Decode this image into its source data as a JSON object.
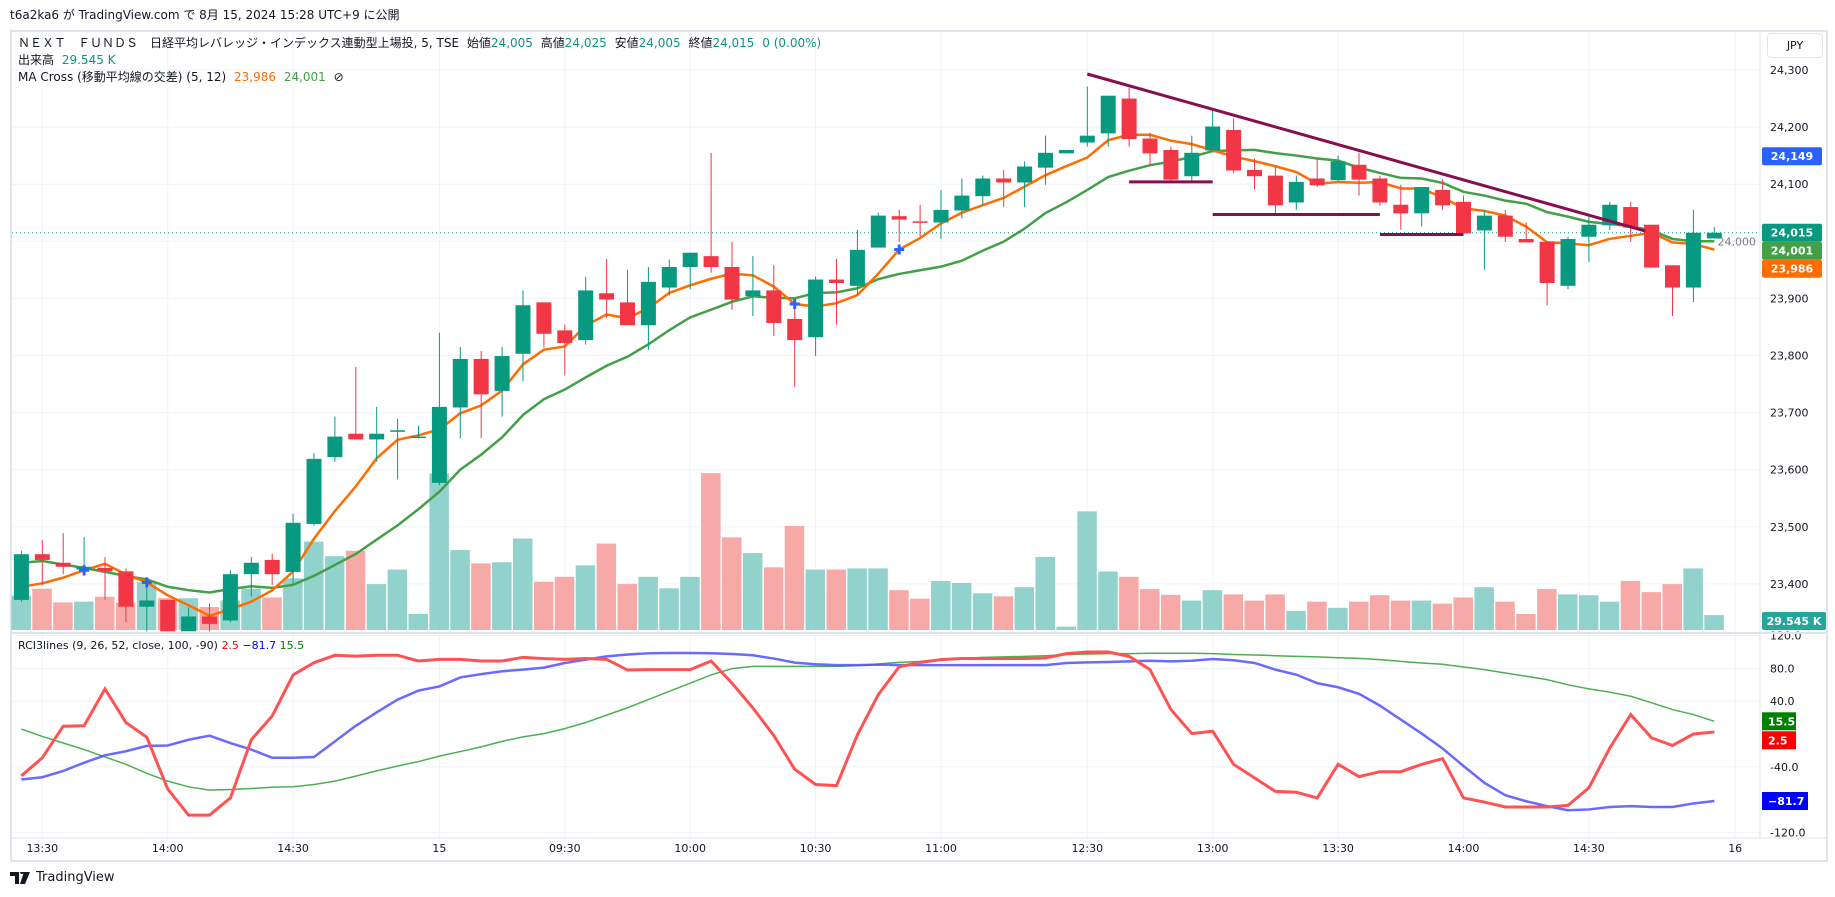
{
  "published": "t6a2ka6 が TradingView.com で 8月 15, 2024 15:28 UTC+9 に公開",
  "legend": {
    "symbol": "ＮＥＸＴ　ＦＵＮＤＳ　日経平均レバレッジ・インデックス連動型上場投, 5, TSE",
    "open_label": "始値",
    "open": "24,005",
    "high_label": "高値",
    "high": "24,025",
    "low_label": "安値",
    "low": "24,005",
    "close_label": "終値",
    "close": "24,015",
    "change": "0 (0.00%)",
    "volume_label": "出来高",
    "volume": "29.545 K",
    "ma_name": "MA Cross (移動平均線の交差) (5, 12)",
    "ma_fast": "23,986",
    "ma_slow": "24,001",
    "ma_hide_icon": "⊘",
    "rci_name": "RCI3lines (9, 26, 52, close, 100, -90)",
    "rci_short": "2.5",
    "rci_mid": "−81.7",
    "rci_long": "15.5"
  },
  "currency_button": "JPY",
  "footer_brand": "TradingView",
  "colors": {
    "up": "#089981",
    "down": "#f23645",
    "ma_fast": "#ff6d00",
    "ma_slow": "#43a047",
    "rci_short": "#ff5252",
    "rci_mid": "#5050ff",
    "rci_long": "#4caf50",
    "trendline": "#880e4f",
    "cross": "#2962ff"
  },
  "price_axis": [
    "24,300",
    "24,200",
    "24,100",
    "24,000",
    "23,900",
    "23,800",
    "23,700",
    "23,600",
    "23,500",
    "23,400"
  ],
  "price_axis_values": [
    24300,
    24200,
    24100,
    24000,
    23900,
    23800,
    23700,
    23600,
    23500,
    23400
  ],
  "price_labels": [
    {
      "text": "24,149",
      "value": 24149,
      "color": "#2962ff"
    },
    {
      "text": "24,015",
      "value": 24015,
      "color": "#089981"
    },
    {
      "text": "24,001",
      "value": 24001,
      "color": "#43a047"
    },
    {
      "text": "23,986",
      "value": 23986,
      "color": "#ff6d00"
    }
  ],
  "volume_label_box": {
    "text": "29.545 K",
    "color": "#26a69a"
  },
  "rci_axis": [
    "120.0",
    "80.0",
    "40.0",
    "-40.0",
    "-120.0"
  ],
  "rci_axis_values": [
    120,
    80,
    40,
    -40,
    -120
  ],
  "rci_levels": [
    100,
    -90
  ],
  "rci_labels": [
    {
      "text": "15.5",
      "value": 15.5,
      "color": "#008000"
    },
    {
      "text": "2.5",
      "value": 2.5,
      "color": "#ff0000"
    },
    {
      "text": "−81.7",
      "value": -81.7,
      "color": "#0000ff"
    }
  ],
  "time_axis": [
    {
      "label": "13:30",
      "bar": 1
    },
    {
      "label": "14:00",
      "bar": 7
    },
    {
      "label": "14:30",
      "bar": 13
    },
    {
      "label": "15",
      "bar": 20
    },
    {
      "label": "09:30",
      "bar": 26
    },
    {
      "label": "10:00",
      "bar": 32
    },
    {
      "label": "10:30",
      "bar": 38
    },
    {
      "label": "11:00",
      "bar": 44
    },
    {
      "label": "12:30",
      "bar": 51
    },
    {
      "label": "13:00",
      "bar": 57
    },
    {
      "label": "13:30",
      "bar": 63
    },
    {
      "label": "14:00",
      "bar": 69
    },
    {
      "label": "14:30",
      "bar": 75
    },
    {
      "label": "16",
      "bar": 82
    }
  ],
  "chart_data": {
    "type": "candlestick",
    "ohlc": [
      [
        23372,
        23458,
        23369,
        23452
      ],
      [
        23452,
        23477,
        23398,
        23442
      ],
      [
        23437,
        23489,
        23417,
        23430
      ],
      [
        23425,
        23482,
        23414,
        23430
      ],
      [
        23428,
        23447,
        23372,
        23422
      ],
      [
        23422,
        23427,
        23333,
        23360
      ],
      [
        23360,
        23411,
        23317,
        23371
      ],
      [
        23372,
        23372,
        23317,
        23317
      ],
      [
        23317,
        23359,
        23317,
        23343
      ],
      [
        23343,
        23366,
        23317,
        23330
      ],
      [
        23336,
        23424,
        23333,
        23417
      ],
      [
        23417,
        23447,
        23378,
        23437
      ],
      [
        23442,
        23453,
        23398,
        23417
      ],
      [
        23421,
        23523,
        23401,
        23507
      ],
      [
        23505,
        23629,
        23502,
        23619
      ],
      [
        23622,
        23693,
        23614,
        23658
      ],
      [
        23663,
        23780,
        23653,
        23653
      ],
      [
        23653,
        23710,
        23614,
        23663
      ],
      [
        23668,
        23689,
        23583,
        23669
      ],
      [
        23657,
        23677,
        23657,
        23658
      ],
      [
        23577,
        23840,
        23573,
        23710
      ],
      [
        23709,
        23815,
        23655,
        23794
      ],
      [
        23794,
        23808,
        23655,
        23732
      ],
      [
        23738,
        23815,
        23693,
        23799
      ],
      [
        23803,
        23914,
        23755,
        23888
      ],
      [
        23893,
        23893,
        23814,
        23838
      ],
      [
        23844,
        23854,
        23765,
        23822
      ],
      [
        23827,
        23938,
        23819,
        23914
      ],
      [
        23909,
        23969,
        23866,
        23898
      ],
      [
        23893,
        23950,
        23853,
        23853
      ],
      [
        23853,
        23955,
        23810,
        23929
      ],
      [
        23919,
        23968,
        23905,
        23955
      ],
      [
        23955,
        23980,
        23916,
        23980
      ],
      [
        23974,
        24155,
        23945,
        23955
      ],
      [
        23955,
        23999,
        23880,
        23898
      ],
      [
        23904,
        23974,
        23869,
        23914
      ],
      [
        23914,
        23958,
        23834,
        23857
      ],
      [
        23864,
        23892,
        23745,
        23827
      ],
      [
        23832,
        23938,
        23799,
        23933
      ],
      [
        23933,
        23969,
        23854,
        23927
      ],
      [
        23922,
        24020,
        23906,
        23985
      ],
      [
        23989,
        24050,
        23989,
        24045
      ],
      [
        24044,
        24055,
        23999,
        24038
      ],
      [
        24035,
        24064,
        24008,
        24033
      ],
      [
        24033,
        24090,
        24004,
        24055
      ],
      [
        24054,
        24110,
        24040,
        24080
      ],
      [
        24079,
        24115,
        24063,
        24110
      ],
      [
        24110,
        24125,
        24060,
        24103
      ],
      [
        24103,
        24140,
        24060,
        24131
      ],
      [
        24129,
        24185,
        24099,
        24155
      ],
      [
        24154,
        24160,
        24154,
        24160
      ],
      [
        24173,
        24271,
        24166,
        24185
      ],
      [
        24189,
        24255,
        24166,
        24255
      ],
      [
        24250,
        24269,
        24166,
        24179
      ],
      [
        24180,
        24190,
        24132,
        24154
      ],
      [
        24160,
        24166,
        24105,
        24108
      ],
      [
        24114,
        24185,
        24106,
        24155
      ],
      [
        24159,
        24231,
        24159,
        24201
      ],
      [
        24195,
        24215,
        24120,
        24124
      ],
      [
        24125,
        24145,
        24091,
        24114
      ],
      [
        24115,
        24131,
        24045,
        24063
      ],
      [
        24068,
        24115,
        24055,
        24104
      ],
      [
        24110,
        24146,
        24095,
        24098
      ],
      [
        24107,
        24150,
        24105,
        24140
      ],
      [
        24134,
        24155,
        24080,
        24108
      ],
      [
        24110,
        24115,
        24062,
        24068
      ],
      [
        24064,
        24099,
        24020,
        24049
      ],
      [
        24049,
        24095,
        24026,
        24095
      ],
      [
        24090,
        24109,
        24055,
        24063
      ],
      [
        24069,
        24080,
        24014,
        24014
      ],
      [
        24019,
        24055,
        23950,
        24045
      ],
      [
        24045,
        24055,
        23999,
        24008
      ],
      [
        24004,
        24033,
        23998,
        23998
      ],
      [
        23999,
        23999,
        23888,
        23927
      ],
      [
        23922,
        24008,
        23916,
        24004
      ],
      [
        24008,
        24049,
        23964,
        24029
      ],
      [
        24028,
        24069,
        24020,
        24064
      ],
      [
        24060,
        24069,
        23999,
        24024
      ],
      [
        24029,
        24029,
        23954,
        23954
      ],
      [
        23958,
        23958,
        23869,
        23919
      ],
      [
        23919,
        24055,
        23894,
        24015
      ],
      [
        24005,
        24025,
        24005,
        24015
      ]
    ],
    "volume_k": [
      68.2,
      81.8,
      54.5,
      56.1,
      65.9,
      53.8,
      94.7,
      62.9,
      62.9,
      45.5,
      58.3,
      81.8,
      64.4,
      102.3,
      175.0,
      146.2,
      156.8,
      90.9,
      119.7,
      31.8,
      309.9,
      158.3,
      131.8,
      134.1,
      181.1,
      95.5,
      105.3,
      128.0,
      171.2,
      90.9,
      105.3,
      82.6,
      105.3,
      310.6,
      183.3,
      152.3,
      124.2,
      206.1,
      119.7,
      119.7,
      122.0,
      122.0,
      78.8,
      62.1,
      97.0,
      93.2,
      72.7,
      66.7,
      84.8,
      144.7,
      6.8,
      234.9,
      115.9,
      105.3,
      81.1,
      69.7,
      58.3,
      78.8,
      70.5,
      58.3,
      70.5,
      37.9,
      56.1,
      43.9,
      56.1,
      68.9,
      58.3,
      58.3,
      52.3,
      64.4,
      84.8,
      56.1,
      31.8,
      81.1,
      70.5,
      68.9,
      56.1,
      97.0,
      75.0,
      90.9,
      122.0,
      29.545
    ],
    "ma_fast_period": 5,
    "ma_slow_period": 12,
    "ma_fast_initial": [
      23395,
      23401,
      23411,
      23424
    ],
    "ma_slow_initial": [
      23437,
      23440,
      23434,
      23428,
      23421,
      23414,
      23408,
      23395,
      23389,
      23385,
      23391
    ],
    "ma_cross_bars": [
      3,
      6,
      37,
      42
    ],
    "trendlines": [
      {
        "from": [
          51,
          24293
        ],
        "to": [
          77.7,
          24018
        ]
      },
      {
        "from": [
          53,
          24104
        ],
        "to": [
          57,
          24104
        ]
      },
      {
        "from": [
          57,
          24047
        ],
        "to": [
          65,
          24047
        ]
      },
      {
        "from": [
          65,
          24012
        ],
        "to": [
          69,
          24012
        ]
      }
    ],
    "rci_short": [
      -51,
      -29,
      9.5,
      10,
      55,
      14,
      -4,
      -67,
      -99,
      -99,
      -78,
      -7,
      22,
      72,
      87,
      96,
      95,
      96,
      96,
      89,
      91,
      91,
      89,
      89,
      93.5,
      92,
      91,
      92,
      91,
      78,
      78.5,
      78.5,
      78.5,
      89,
      62,
      31.8,
      -2,
      -43,
      -61.6,
      -63,
      -1,
      48,
      82,
      87.4,
      90.7,
      92,
      92,
      92,
      92,
      92.7,
      98,
      100,
      100,
      94.7,
      78.5,
      29.8,
      0.5,
      3.4,
      -37,
      -53.5,
      -70,
      -71,
      -78,
      -37,
      -52,
      -46,
      -46,
      -37,
      -30,
      -78,
      -83,
      -89,
      -89,
      -89,
      -87,
      -65.6,
      -17,
      23.7,
      -4.7,
      -14,
      0,
      2.5
    ],
    "rci_mid": [
      -55.5,
      -52.7,
      -45,
      -35,
      -26,
      -21,
      -14.5,
      -14,
      -7,
      -2,
      -11,
      -19,
      -29,
      -29,
      -28,
      -9,
      10,
      26.5,
      42,
      53,
      58,
      69,
      73,
      76.5,
      78.5,
      81,
      86.6,
      90.7,
      94.7,
      97,
      98.4,
      98.8,
      98.8,
      98.4,
      97.6,
      96,
      92,
      87,
      85,
      84,
      84,
      84.6,
      84,
      84,
      84,
      84,
      84,
      84,
      84,
      84,
      86.6,
      87.4,
      87.8,
      88.6,
      89.4,
      88.6,
      89.4,
      91.5,
      90,
      86.6,
      78.5,
      72.4,
      62,
      57,
      49,
      34.6,
      17.6,
      0.5,
      -17.7,
      -39,
      -59.6,
      -74.6,
      -82,
      -88,
      -93,
      -92,
      -89,
      -88,
      -89,
      -89,
      -84.7,
      -81.7
    ],
    "rci_long": [
      6,
      -3,
      -11,
      -19,
      -28,
      -37,
      -48,
      -57.5,
      -64.4,
      -68.5,
      -67.7,
      -66.5,
      -65,
      -64.4,
      -61.6,
      -57.5,
      -51.4,
      -45,
      -39,
      -33.6,
      -27,
      -21.4,
      -15.7,
      -9,
      -3.5,
      0.5,
      6.6,
      14,
      23,
      32,
      42,
      52,
      62,
      72,
      79.7,
      82.5,
      82.5,
      82.5,
      82.5,
      82.5,
      83.4,
      85.4,
      87.4,
      88.6,
      90.7,
      92.3,
      93.5,
      94,
      94.7,
      95.5,
      96.8,
      97.6,
      98,
      98,
      98.4,
      98.4,
      98.4,
      98,
      97,
      96.3,
      95.5,
      94.7,
      94,
      93,
      92.3,
      90.7,
      88.6,
      86.6,
      85,
      81.7,
      78.5,
      74.4,
      70.4,
      66.3,
      60,
      55,
      51,
      46,
      38,
      29.8,
      23.7,
      15.5
    ],
    "last_price": 24015
  }
}
